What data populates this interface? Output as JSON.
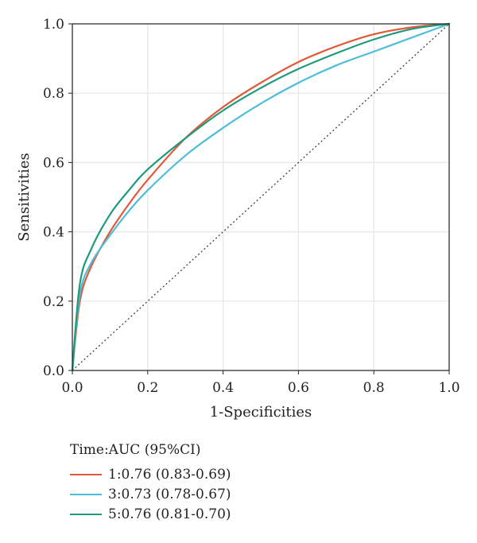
{
  "chart_data": {
    "type": "line",
    "xlabel": "1-Specificities",
    "ylabel": "Sensitivities",
    "xlim": [
      0,
      1
    ],
    "ylim": [
      0,
      1
    ],
    "x_ticks": [
      "0.0",
      "0.2",
      "0.4",
      "0.6",
      "0.8",
      "1.0"
    ],
    "y_ticks": [
      "0.0",
      "0.2",
      "0.4",
      "0.6",
      "0.8",
      "1.0"
    ],
    "grid": true,
    "legend_title": "Time:AUC (95%CI)",
    "legend_position": "bottom-left",
    "series": [
      {
        "name": "1:0.76 (0.83-0.69)",
        "color": "#e05a3a",
        "x": [
          0,
          0.02,
          0.05,
          0.1,
          0.15,
          0.2,
          0.3,
          0.4,
          0.5,
          0.6,
          0.7,
          0.8,
          0.9,
          1.0
        ],
        "y": [
          0,
          0.2,
          0.3,
          0.4,
          0.48,
          0.55,
          0.67,
          0.76,
          0.83,
          0.89,
          0.935,
          0.97,
          0.99,
          1.0
        ]
      },
      {
        "name": "3:0.73 (0.78-0.67)",
        "color": "#4fbcd9",
        "x": [
          0,
          0.02,
          0.05,
          0.1,
          0.15,
          0.2,
          0.3,
          0.4,
          0.5,
          0.6,
          0.7,
          0.8,
          0.9,
          1.0
        ],
        "y": [
          0,
          0.22,
          0.31,
          0.39,
          0.46,
          0.52,
          0.62,
          0.7,
          0.77,
          0.83,
          0.88,
          0.92,
          0.96,
          1.0
        ]
      },
      {
        "name": "5:0.76 (0.81-0.70)",
        "color": "#1f9a7c",
        "x": [
          0,
          0.02,
          0.05,
          0.1,
          0.15,
          0.2,
          0.3,
          0.4,
          0.5,
          0.6,
          0.7,
          0.8,
          0.9,
          1.0
        ],
        "y": [
          0,
          0.25,
          0.35,
          0.45,
          0.52,
          0.58,
          0.67,
          0.75,
          0.815,
          0.87,
          0.915,
          0.955,
          0.985,
          1.0
        ]
      }
    ],
    "reference_line": {
      "x": [
        0,
        1
      ],
      "y": [
        0,
        1
      ],
      "color": "#333333",
      "style": "dotted"
    }
  }
}
